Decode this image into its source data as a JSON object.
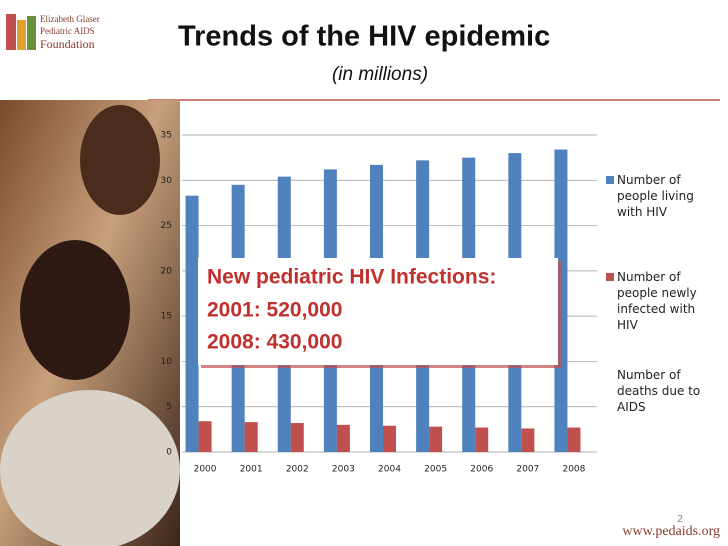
{
  "logo": [
    "Elizabeth Glaser",
    "Pediatric AIDS",
    "Foundation"
  ],
  "page_number": "2",
  "footer_url": "www.pedaids.org",
  "chart_data": {
    "type": "bar",
    "title": "Trends of the HIV epidemic",
    "subtitle": "(in millions)",
    "categories": [
      "2000",
      "2001",
      "2002",
      "2003",
      "2004",
      "2005",
      "2006",
      "2007",
      "2008"
    ],
    "series": [
      {
        "name": "Number of people living with HIV",
        "color": "#4f81bd",
        "values": [
          28.3,
          29.5,
          30.4,
          31.2,
          31.7,
          32.2,
          32.5,
          33.0,
          33.4
        ]
      },
      {
        "name": "Number of people newly infected with HIV",
        "color": "#c0504d",
        "values": [
          3.4,
          3.3,
          3.2,
          3.0,
          2.9,
          2.8,
          2.7,
          2.6,
          2.7
        ]
      },
      {
        "name": "Number of deaths due to AIDS",
        "color": "#ffffff",
        "values": [
          null,
          null,
          null,
          null,
          null,
          null,
          null,
          null,
          null
        ]
      }
    ],
    "ylim": [
      0,
      35
    ],
    "yticks": [
      0,
      5,
      10,
      15,
      20,
      25,
      30,
      35
    ],
    "grid": true,
    "annotations": [
      "New pediatric HIV Infections:",
      "2001: 520,000",
      "2008: 430,000"
    ]
  }
}
